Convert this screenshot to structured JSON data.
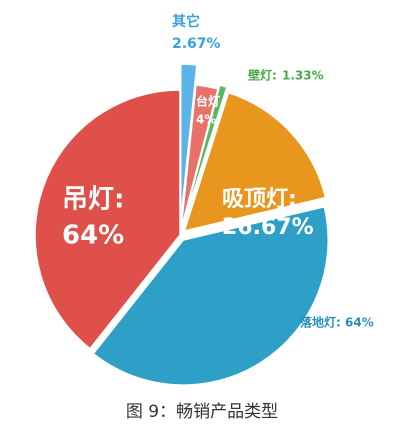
{
  "chart_data": {
    "type": "pie",
    "categories": [
      "其它",
      "台灯",
      "壁灯:",
      "吸顶灯:",
      "落地灯:",
      "吊灯:"
    ],
    "values": [
      2.67,
      4,
      1.33,
      26.67,
      64,
      64
    ],
    "value_labels": [
      "2.67%",
      "4%",
      "1.33%",
      "26.67%",
      "64%",
      "64%"
    ],
    "colors": [
      "#5ab4e8",
      "#e8726a",
      "#5cb85c",
      "#e8961e",
      "#2ea0c8",
      "#e0504a"
    ],
    "caption": "图 9：畅销产品类型"
  }
}
